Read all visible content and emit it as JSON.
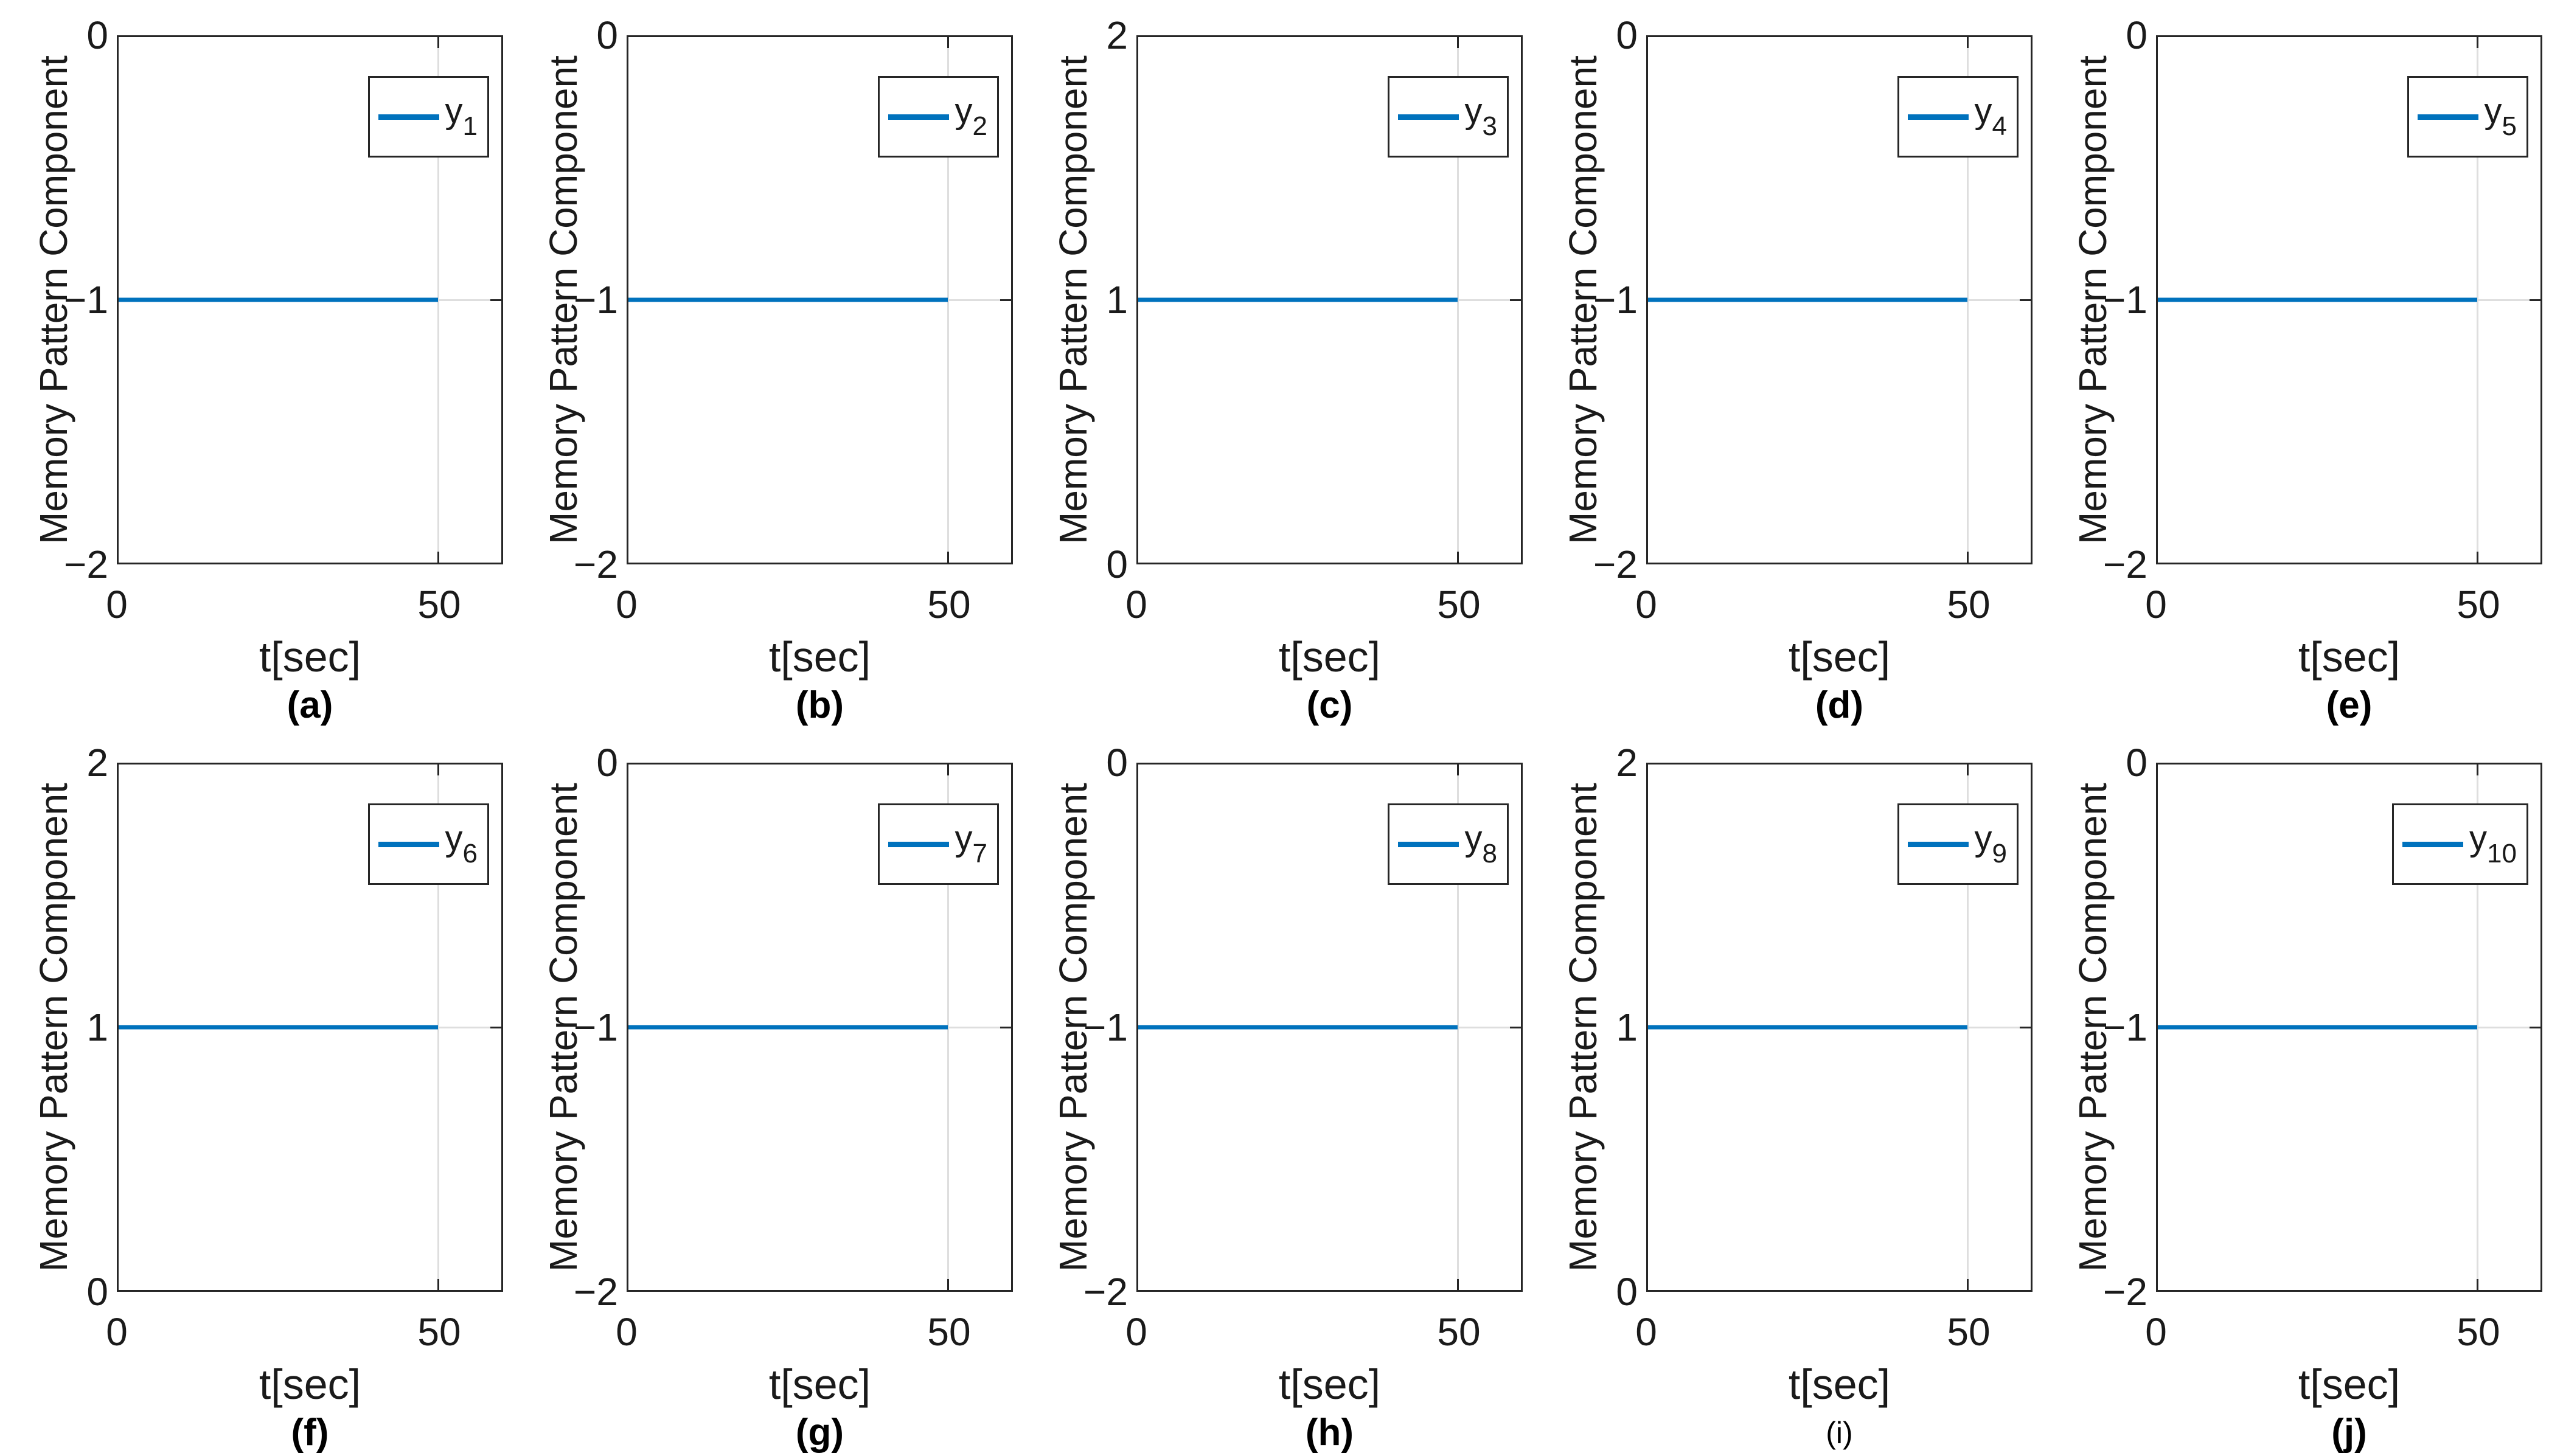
{
  "figure": {
    "line_color": "#0072BD",
    "grid_color": "#dedede",
    "axes_color": "#262626",
    "background": "#ffffff"
  },
  "shared": {
    "ylabel": "Memory Pattern Component",
    "xlabel": "t[sec]",
    "xtick_left": "0",
    "xtick_right": "50"
  },
  "plots": [
    {
      "id": "a",
      "caption": "(a)",
      "caption_bold": true,
      "legend_base": "y",
      "legend_sub": "1",
      "ytick_top": "0",
      "ytick_mid": "−1",
      "ytick_bottom": "−2"
    },
    {
      "id": "b",
      "caption": "(b)",
      "caption_bold": true,
      "legend_base": "y",
      "legend_sub": "2",
      "ytick_top": "0",
      "ytick_mid": "−1",
      "ytick_bottom": "−2"
    },
    {
      "id": "c",
      "caption": "(c)",
      "caption_bold": true,
      "legend_base": "y",
      "legend_sub": "3",
      "ytick_top": "2",
      "ytick_mid": "1",
      "ytick_bottom": "0"
    },
    {
      "id": "d",
      "caption": "(d)",
      "caption_bold": true,
      "legend_base": "y",
      "legend_sub": "4",
      "ytick_top": "0",
      "ytick_mid": "−1",
      "ytick_bottom": "−2"
    },
    {
      "id": "e",
      "caption": "(e)",
      "caption_bold": true,
      "legend_base": "y",
      "legend_sub": "5",
      "ytick_top": "0",
      "ytick_mid": "−1",
      "ytick_bottom": "−2"
    },
    {
      "id": "f",
      "caption": "(f)",
      "caption_bold": true,
      "legend_base": "y",
      "legend_sub": "6",
      "ytick_top": "2",
      "ytick_mid": "1",
      "ytick_bottom": "0"
    },
    {
      "id": "g",
      "caption": "(g)",
      "caption_bold": true,
      "legend_base": "y",
      "legend_sub": "7",
      "ytick_top": "0",
      "ytick_mid": "−1",
      "ytick_bottom": "−2"
    },
    {
      "id": "h",
      "caption": "(h)",
      "caption_bold": true,
      "legend_base": "y",
      "legend_sub": "8",
      "ytick_top": "0",
      "ytick_mid": "−1",
      "ytick_bottom": "−2"
    },
    {
      "id": "i",
      "caption": "(i)",
      "caption_bold": false,
      "legend_base": "y",
      "legend_sub": "9",
      "ytick_top": "2",
      "ytick_mid": "1",
      "ytick_bottom": "0"
    },
    {
      "id": "j",
      "caption": "(j)",
      "caption_bold": true,
      "legend_base": "y",
      "legend_sub": "10",
      "ytick_top": "0",
      "ytick_mid": "−1",
      "ytick_bottom": "−2"
    }
  ],
  "chart_data": [
    {
      "type": "line",
      "caption": "(a)",
      "xlabel": "t[sec]",
      "ylabel": "Memory Pattern Component",
      "xlim": [
        0,
        60
      ],
      "ylim": [
        -2,
        0
      ],
      "xticks": [
        0,
        50
      ],
      "yticks": [
        -2,
        -1,
        0
      ],
      "grid": true,
      "legend_position": "northeast",
      "series": [
        {
          "name": "y_1",
          "x": [
            0,
            50
          ],
          "y": [
            -1,
            -1
          ]
        }
      ]
    },
    {
      "type": "line",
      "caption": "(b)",
      "xlabel": "t[sec]",
      "ylabel": "Memory Pattern Component",
      "xlim": [
        0,
        60
      ],
      "ylim": [
        -2,
        0
      ],
      "xticks": [
        0,
        50
      ],
      "yticks": [
        -2,
        -1,
        0
      ],
      "grid": true,
      "legend_position": "northeast",
      "series": [
        {
          "name": "y_2",
          "x": [
            0,
            50
          ],
          "y": [
            -1,
            -1
          ]
        }
      ]
    },
    {
      "type": "line",
      "caption": "(c)",
      "xlabel": "t[sec]",
      "ylabel": "Memory Pattern Component",
      "xlim": [
        0,
        60
      ],
      "ylim": [
        0,
        2
      ],
      "xticks": [
        0,
        50
      ],
      "yticks": [
        0,
        1,
        2
      ],
      "grid": true,
      "legend_position": "northeast",
      "series": [
        {
          "name": "y_3",
          "x": [
            0,
            50
          ],
          "y": [
            1,
            1
          ]
        }
      ]
    },
    {
      "type": "line",
      "caption": "(d)",
      "xlabel": "t[sec]",
      "ylabel": "Memory Pattern Component",
      "xlim": [
        0,
        60
      ],
      "ylim": [
        -2,
        0
      ],
      "xticks": [
        0,
        50
      ],
      "yticks": [
        -2,
        -1,
        0
      ],
      "grid": true,
      "legend_position": "northeast",
      "series": [
        {
          "name": "y_4",
          "x": [
            0,
            50
          ],
          "y": [
            -1,
            -1
          ]
        }
      ]
    },
    {
      "type": "line",
      "caption": "(e)",
      "xlabel": "t[sec]",
      "ylabel": "Memory Pattern Component",
      "xlim": [
        0,
        60
      ],
      "ylim": [
        -2,
        0
      ],
      "xticks": [
        0,
        50
      ],
      "yticks": [
        -2,
        -1,
        0
      ],
      "grid": true,
      "legend_position": "northeast",
      "series": [
        {
          "name": "y_5",
          "x": [
            0,
            50
          ],
          "y": [
            -1,
            -1
          ]
        }
      ]
    },
    {
      "type": "line",
      "caption": "(f)",
      "xlabel": "t[sec]",
      "ylabel": "Memory Pattern Component",
      "xlim": [
        0,
        60
      ],
      "ylim": [
        0,
        2
      ],
      "xticks": [
        0,
        50
      ],
      "yticks": [
        0,
        1,
        2
      ],
      "grid": true,
      "legend_position": "northeast",
      "series": [
        {
          "name": "y_6",
          "x": [
            0,
            50
          ],
          "y": [
            1,
            1
          ]
        }
      ]
    },
    {
      "type": "line",
      "caption": "(g)",
      "xlabel": "t[sec]",
      "ylabel": "Memory Pattern Component",
      "xlim": [
        0,
        60
      ],
      "ylim": [
        -2,
        0
      ],
      "xticks": [
        0,
        50
      ],
      "yticks": [
        -2,
        -1,
        0
      ],
      "grid": true,
      "legend_position": "northeast",
      "series": [
        {
          "name": "y_7",
          "x": [
            0,
            50
          ],
          "y": [
            -1,
            -1
          ]
        }
      ]
    },
    {
      "type": "line",
      "caption": "(h)",
      "xlabel": "t[sec]",
      "ylabel": "Memory Pattern Component",
      "xlim": [
        0,
        60
      ],
      "ylim": [
        -2,
        0
      ],
      "xticks": [
        0,
        50
      ],
      "yticks": [
        -2,
        -1,
        0
      ],
      "grid": true,
      "legend_position": "northeast",
      "series": [
        {
          "name": "y_8",
          "x": [
            0,
            50
          ],
          "y": [
            -1,
            -1
          ]
        }
      ]
    },
    {
      "type": "line",
      "caption": "(i)",
      "xlabel": "t[sec]",
      "ylabel": "Memory Pattern Component",
      "xlim": [
        0,
        60
      ],
      "ylim": [
        0,
        2
      ],
      "xticks": [
        0,
        50
      ],
      "yticks": [
        0,
        1,
        2
      ],
      "grid": true,
      "legend_position": "northeast",
      "series": [
        {
          "name": "y_9",
          "x": [
            0,
            50
          ],
          "y": [
            1,
            1
          ]
        }
      ]
    },
    {
      "type": "line",
      "caption": "(j)",
      "xlabel": "t[sec]",
      "ylabel": "Memory Pattern Component",
      "xlim": [
        0,
        60
      ],
      "ylim": [
        -2,
        0
      ],
      "xticks": [
        0,
        50
      ],
      "yticks": [
        -2,
        -1,
        0
      ],
      "grid": true,
      "legend_position": "northeast",
      "series": [
        {
          "name": "y_10",
          "x": [
            0,
            50
          ],
          "y": [
            -1,
            -1
          ]
        }
      ]
    }
  ]
}
